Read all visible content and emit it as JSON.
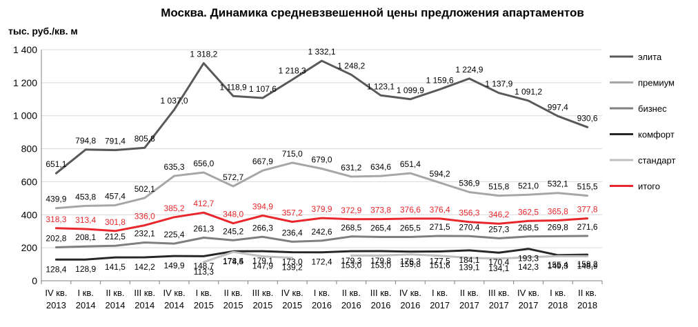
{
  "chart_data": {
    "type": "line",
    "title": "Москва. Динамика средневзвешенной цены предложения апартаментов",
    "ylabel": "тыс. руб./кв. м",
    "xlabel": "",
    "ylim": [
      0,
      1400
    ],
    "yticks": [
      0,
      200,
      400,
      600,
      800,
      1000,
      1200,
      1400
    ],
    "ytick_labels": [
      "0",
      "200",
      "400",
      "600",
      "800",
      "1 000",
      "1 200",
      "1 400"
    ],
    "grid": "horizontal",
    "legend_position": "right",
    "categories": [
      [
        "IV кв.",
        "2013"
      ],
      [
        "I кв.",
        "2014"
      ],
      [
        "II кв.",
        "2014"
      ],
      [
        "III кв.",
        "2014"
      ],
      [
        "IV кв.",
        "2014"
      ],
      [
        "I кв.",
        "2015"
      ],
      [
        "II кв.",
        "2015"
      ],
      [
        "III кв.",
        "2015"
      ],
      [
        "IV кв.",
        "2015"
      ],
      [
        "I кв.",
        "2016"
      ],
      [
        "II кв.",
        "2016"
      ],
      [
        "III кв.",
        "2016"
      ],
      [
        "IV кв.",
        "2016"
      ],
      [
        "I кв.",
        "2017"
      ],
      [
        "II кв.",
        "2017"
      ],
      [
        "III кв.",
        "2017"
      ],
      [
        "IV кв.",
        "2017"
      ],
      [
        "I кв.",
        "2018"
      ],
      [
        "II кв.",
        "2018"
      ]
    ],
    "series": [
      {
        "name": "элита",
        "color": "#595959",
        "values": [
          651.1,
          794.8,
          791.4,
          805.8,
          1037.0,
          1318.2,
          1118.9,
          1107.6,
          1218.3,
          1332.1,
          1248.2,
          1123.1,
          1099.9,
          1159.6,
          1224.9,
          1137.9,
          1091.2,
          997.4,
          930.6
        ],
        "labels": [
          "651,1",
          "794,8",
          "791,4",
          "805,8",
          "1 037,0",
          "1 318,2",
          "1 118,9",
          "1 107,6",
          "1 218,3",
          "1 332,1",
          "1 248,2",
          "1 123,1",
          "1 099,9",
          "1 159,6",
          "1 224,9",
          "1 137,9",
          "1 091,2",
          "997,4",
          "930,6"
        ]
      },
      {
        "name": "премиум",
        "color": "#a6a6a6",
        "values": [
          439.9,
          453.8,
          457.4,
          502.1,
          635.3,
          656.0,
          572.7,
          667.9,
          715.0,
          679.0,
          631.2,
          634.6,
          651.4,
          594.2,
          536.9,
          515.8,
          521.0,
          532.1,
          515.5
        ],
        "labels": [
          "439,9",
          "453,8",
          "457,4",
          "502,1",
          "635,3",
          "656,0",
          "572,7",
          "667,9",
          "715,0",
          "679,0",
          "631,2",
          "634,6",
          "651,4",
          "594,2",
          "536,9",
          "515,8",
          "521,0",
          "532,1",
          "515,5"
        ]
      },
      {
        "name": "бизнес",
        "color": "#7f7f7f",
        "values": [
          202.8,
          208.1,
          212.5,
          232.1,
          225.4,
          261.3,
          245.2,
          266.3,
          236.4,
          242.6,
          268.5,
          265.4,
          265.5,
          271.5,
          270.4,
          257.3,
          268.5,
          269.8,
          271.6
        ],
        "labels": [
          "202,8",
          "208,1",
          "212,5",
          "232,1",
          "225,4",
          "261,3",
          "245,2",
          "266,3",
          "236,4",
          "242,6",
          "268,5",
          "265,4",
          "265,5",
          "271,5",
          "270,4",
          "257,3",
          "268,5",
          "269,8",
          "271,6"
        ]
      },
      {
        "name": "комфорт",
        "color": "#262626",
        "values": [
          128.4,
          128.9,
          141.5,
          142.2,
          149.9,
          148.7,
          178.4,
          179.1,
          173.0,
          172.4,
          179.3,
          179.8,
          176.3,
          177.5,
          184.1,
          170.4,
          193.3,
          155.4,
          158.2
        ],
        "labels": [
          "128,4",
          "128,9",
          "141,5",
          "142,2",
          "149,9",
          "148,7",
          "178,4",
          "179,1",
          "173,0",
          "172,4",
          "179,3",
          "179,8",
          "176,3",
          "177,5",
          "184,1",
          "170,4",
          "193,3",
          "155,4",
          "158,2"
        ]
      },
      {
        "name": "стандарт",
        "color": "#bfbfbf",
        "values": [
          null,
          null,
          null,
          null,
          null,
          113.3,
          174.5,
          147.9,
          139.2,
          null,
          153.0,
          153.0,
          159.8,
          151.6,
          139.1,
          134.1,
          142.3,
          149.3,
          148.9
        ],
        "labels": [
          "",
          "",
          "",
          "",
          "",
          "113,3",
          "174,5",
          "147,9",
          "139,2",
          "",
          "153,0",
          "153,0",
          "159,8",
          "151,6",
          "139,1",
          "134,1",
          "142,3",
          "149,3",
          "148,9"
        ]
      },
      {
        "name": "итого",
        "color": "#e8262b",
        "values": [
          318.3,
          313.4,
          301.8,
          336.0,
          385.2,
          412.7,
          348.0,
          394.9,
          357.2,
          379.9,
          372.9,
          373.8,
          376.6,
          376.4,
          356.3,
          346.2,
          362.5,
          365.8,
          377.8
        ],
        "labels": [
          "318,3",
          "313,4",
          "301,8",
          "336,0",
          "385,2",
          "412,7",
          "348,0",
          "394,9",
          "357,2",
          "379,9",
          "372,9",
          "373,8",
          "376,6",
          "376,4",
          "356,3",
          "346,2",
          "362,5",
          "365,8",
          "377,8"
        ]
      }
    ]
  }
}
